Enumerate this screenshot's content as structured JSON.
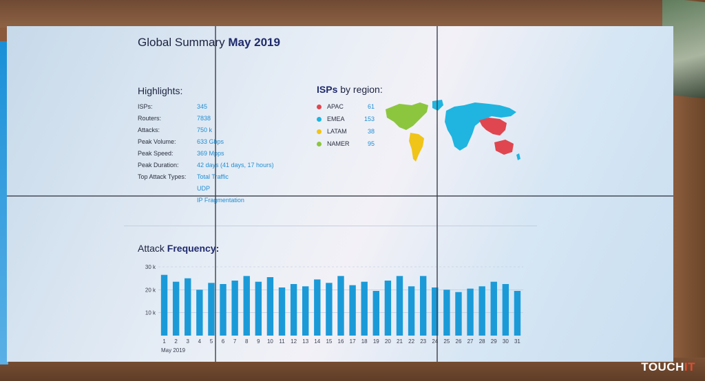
{
  "title": {
    "prefix": "Global Summary",
    "bold": "May 2019"
  },
  "highlights": {
    "heading": "Highlights:",
    "rows": [
      {
        "label": "ISPs:",
        "value": "345"
      },
      {
        "label": "Routers:",
        "value": "7838"
      },
      {
        "label": "Attacks:",
        "value": "750 k"
      },
      {
        "label": "Peak Volume:",
        "value": "633 Gbps"
      },
      {
        "label": "Peak Speed:",
        "value": "369 Mpps"
      },
      {
        "label": "Peak Duration:",
        "value": "42 days (41 days, 17 hours)"
      },
      {
        "label": "Top Attack Types:",
        "value": "Total Traffic"
      },
      {
        "label": "",
        "value": "UDP"
      },
      {
        "label": "",
        "value": "IP Fragmentation"
      }
    ]
  },
  "isps": {
    "heading_bold": "ISPs",
    "heading_rest": " by region:",
    "regions": [
      {
        "name": "APAC",
        "count": "61",
        "color": "#e0464f"
      },
      {
        "name": "EMEA",
        "count": "153",
        "color": "#1fb5e0"
      },
      {
        "name": "LATAM",
        "count": "38",
        "color": "#f0c419"
      },
      {
        "name": "NAMER",
        "count": "95",
        "color": "#8cc63f"
      }
    ]
  },
  "frequency": {
    "heading_rest": "Attack ",
    "heading_bold": "Frequency:"
  },
  "chart_data": {
    "type": "bar",
    "categories": [
      "1",
      "2",
      "3",
      "4",
      "5",
      "6",
      "7",
      "8",
      "9",
      "10",
      "11",
      "12",
      "13",
      "14",
      "15",
      "16",
      "17",
      "18",
      "19",
      "20",
      "21",
      "22",
      "23",
      "24",
      "25",
      "26",
      "27",
      "28",
      "29",
      "30",
      "31"
    ],
    "values": [
      26500,
      23500,
      25000,
      20000,
      23000,
      22500,
      24000,
      26000,
      23500,
      25500,
      21000,
      22500,
      21500,
      24500,
      23000,
      26000,
      22000,
      23500,
      19500,
      24000,
      26000,
      21500,
      26000,
      21000,
      20000,
      19000,
      20500,
      21500,
      23500,
      22500,
      19500
    ],
    "xlabel": "May 2019",
    "ylim": [
      0,
      30000
    ],
    "yticks": [
      {
        "v": 10000,
        "label": "10 k"
      },
      {
        "v": 20000,
        "label": "20 k"
      },
      {
        "v": 30000,
        "label": "30 k"
      }
    ],
    "bar_color": "#1b9ad8"
  },
  "watermark": {
    "main": "TOUCH",
    "accent": "IT"
  }
}
